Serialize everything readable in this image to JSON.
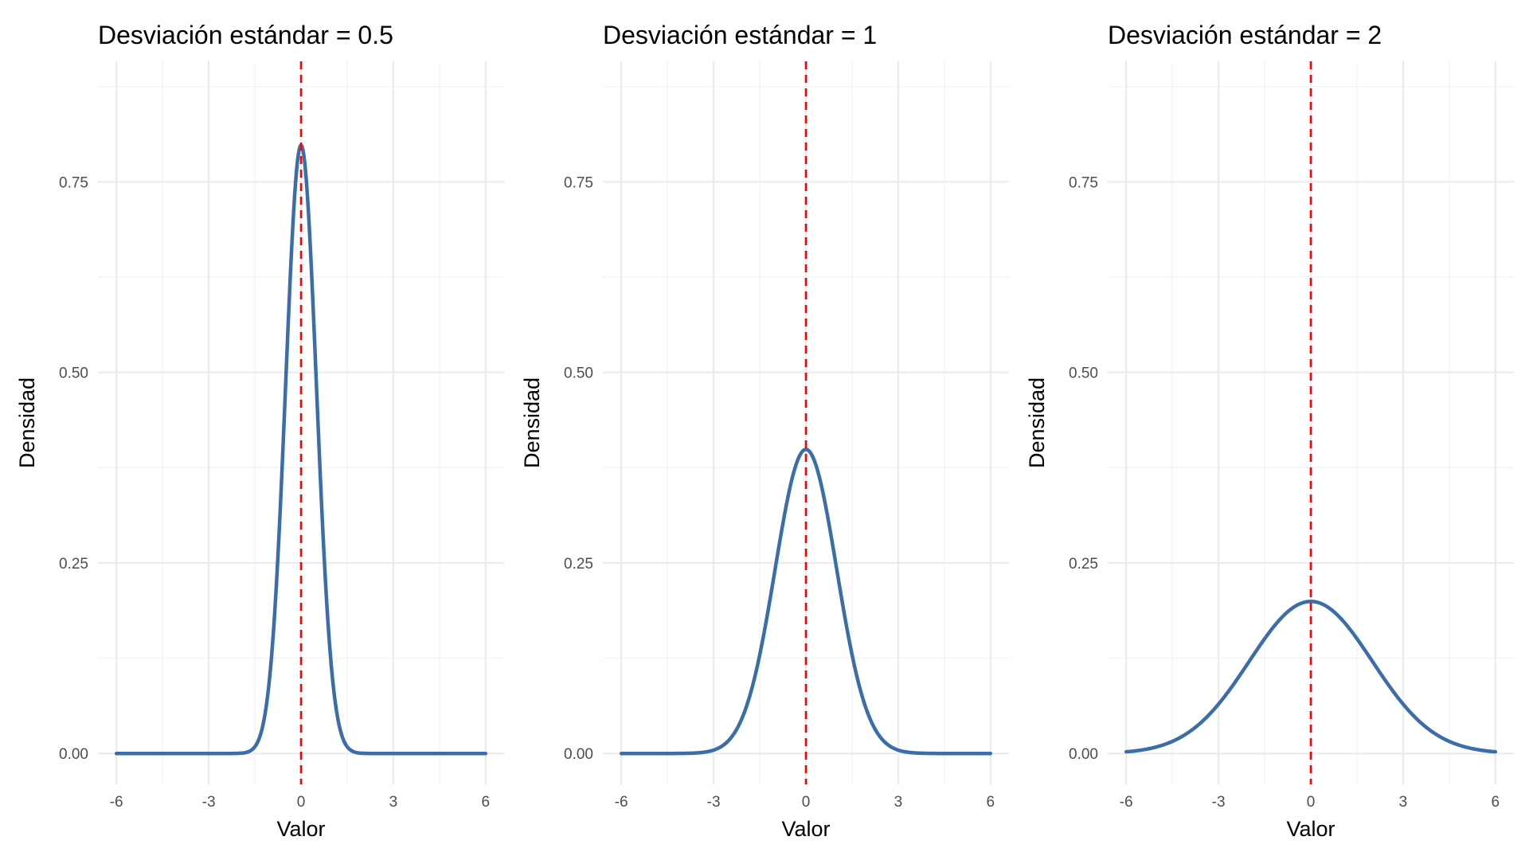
{
  "chart_data": [
    {
      "type": "line",
      "title": "Desviación estándar = 0.5",
      "xlabel": "Valor",
      "ylabel": "Densidad",
      "mean": 0,
      "sd": 0.5,
      "xlim": [
        -6,
        6
      ],
      "ylim": [
        0,
        0.9
      ],
      "x_ticks": [
        -6,
        -3,
        0,
        3,
        6
      ],
      "x_tick_labels": [
        "-6",
        "-3",
        "0",
        "3",
        "6"
      ],
      "y_ticks": [
        0,
        0.25,
        0.5,
        0.75
      ],
      "y_tick_labels": [
        "0.00",
        "0.25",
        "0.50",
        "0.75"
      ],
      "peak_density": 0.798,
      "reference_line_x": 0,
      "grid": true
    },
    {
      "type": "line",
      "title": "Desviación estándar = 1",
      "xlabel": "Valor",
      "ylabel": "Densidad",
      "mean": 0,
      "sd": 1,
      "xlim": [
        -6,
        6
      ],
      "ylim": [
        0,
        0.9
      ],
      "x_ticks": [
        -6,
        -3,
        0,
        3,
        6
      ],
      "x_tick_labels": [
        "-6",
        "-3",
        "0",
        "3",
        "6"
      ],
      "y_ticks": [
        0,
        0.25,
        0.5,
        0.75
      ],
      "y_tick_labels": [
        "0.00",
        "0.25",
        "0.50",
        "0.75"
      ],
      "peak_density": 0.399,
      "reference_line_x": 0,
      "grid": true
    },
    {
      "type": "line",
      "title": "Desviación estándar = 2",
      "xlabel": "Valor",
      "ylabel": "Densidad",
      "mean": 0,
      "sd": 2,
      "xlim": [
        -6,
        6
      ],
      "ylim": [
        0,
        0.9
      ],
      "x_ticks": [
        -6,
        -3,
        0,
        3,
        6
      ],
      "x_tick_labels": [
        "-6",
        "-3",
        "0",
        "3",
        "6"
      ],
      "y_ticks": [
        0,
        0.25,
        0.5,
        0.75
      ],
      "y_tick_labels": [
        "0.00",
        "0.25",
        "0.50",
        "0.75"
      ],
      "peak_density": 0.199,
      "reference_line_x": 0,
      "grid": true
    }
  ],
  "colors": {
    "curve": "#3b6ea8",
    "mean_line": "#ff0000",
    "grid_major": "#ebebeb",
    "grid_minor": "#f2f2f2",
    "tick_text": "#4d4d4d",
    "title_text": "#000000"
  }
}
